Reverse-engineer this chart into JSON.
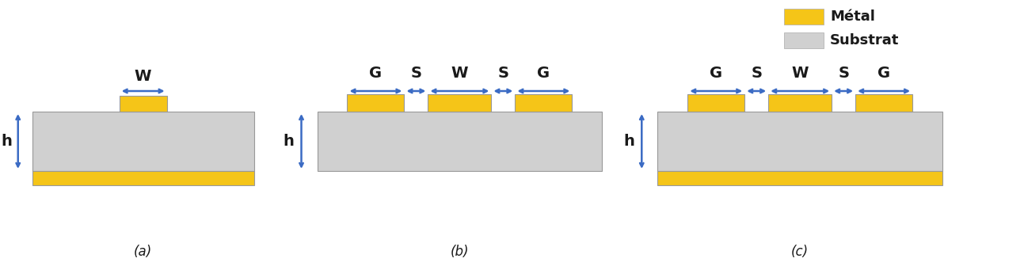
{
  "metal_color": "#F5C518",
  "substrate_color": "#D0D0D0",
  "arrow_color": "#3B6BC4",
  "bg_color": "#FFFFFF",
  "text_color": "#1a1a1a",
  "legend_metal": "Métal",
  "legend_substrate": "Substrat",
  "label_a": "(a)",
  "label_b": "(b)",
  "label_c": "(c)",
  "fig_width": 12.93,
  "fig_height": 3.36
}
